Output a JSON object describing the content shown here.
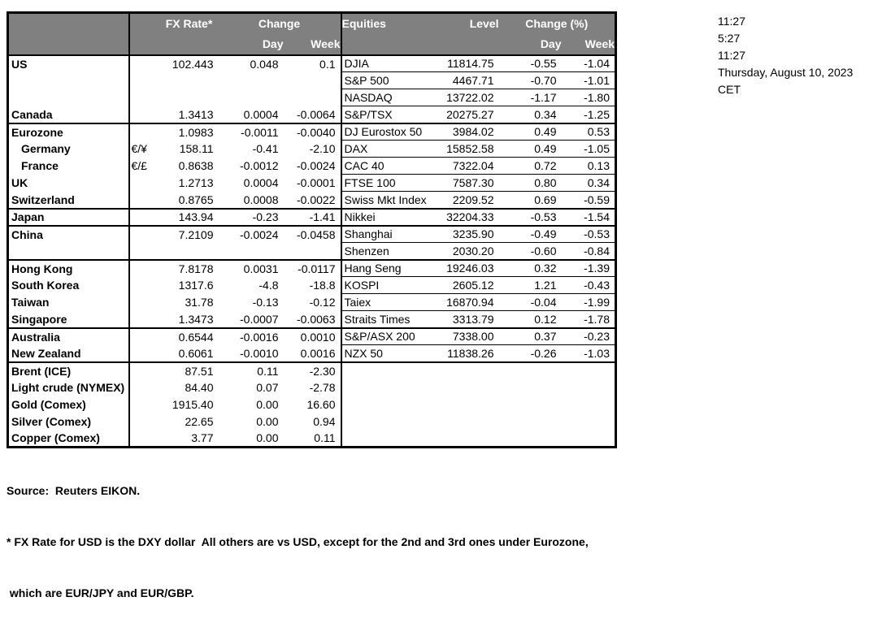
{
  "colors": {
    "header_bg": "#808080",
    "header_text": "#ffffff",
    "border": "#000000",
    "text": "#000000",
    "background": "#ffffff"
  },
  "table": {
    "header": {
      "fx_rate": "FX Rate*",
      "change": "Change",
      "day": "Day",
      "week": "Week",
      "equities": "Equities",
      "level": "Level",
      "change_pct": "Change (%)",
      "day2": "Day",
      "week2": "Week"
    },
    "rows": [
      {
        "region": "US",
        "pair": "",
        "fx_rate": "102.443",
        "fx_day": "0.048",
        "fx_week": "0.1",
        "equity": "DJIA",
        "level": "11814.75",
        "eq_day": "-0.55",
        "eq_week": "-1.04",
        "indent": false,
        "section_end": false,
        "eq_line": true
      },
      {
        "region": "",
        "pair": "",
        "fx_rate": "",
        "fx_day": "",
        "fx_week": "",
        "equity": "S&P 500",
        "level": "4467.71",
        "eq_day": "-0.70",
        "eq_week": "-1.01",
        "indent": false,
        "section_end": false,
        "eq_line": true
      },
      {
        "region": "",
        "pair": "",
        "fx_rate": "",
        "fx_day": "",
        "fx_week": "",
        "equity": "NASDAQ",
        "level": "13722.02",
        "eq_day": "-1.17",
        "eq_week": "-1.80",
        "indent": false,
        "section_end": false,
        "eq_line": true
      },
      {
        "region": "Canada",
        "pair": "",
        "fx_rate": "1.3413",
        "fx_day": "0.0004",
        "fx_week": "-0.0064",
        "equity": "S&P/TSX",
        "level": "20275.27",
        "eq_day": "0.34",
        "eq_week": "-1.25",
        "indent": false,
        "section_end": true,
        "eq_line": false
      },
      {
        "region": "Eurozone",
        "pair": "",
        "fx_rate": "1.0983",
        "fx_day": "-0.0011",
        "fx_week": "-0.0040",
        "equity": "DJ Eurostox 50",
        "level": "3984.02",
        "eq_day": "0.49",
        "eq_week": "0.53",
        "indent": false,
        "section_end": false,
        "eq_line": true
      },
      {
        "region": "Germany",
        "pair": "€/¥",
        "fx_rate": "158.11",
        "fx_day": "-0.41",
        "fx_week": "-2.10",
        "equity": "DAX",
        "level": "15852.58",
        "eq_day": "0.49",
        "eq_week": "-1.05",
        "indent": true,
        "section_end": false,
        "eq_line": true
      },
      {
        "region": "France",
        "pair": "€/£",
        "fx_rate": "0.8638",
        "fx_day": "-0.0012",
        "fx_week": "-0.0024",
        "equity": "CAC 40",
        "level": "7322.04",
        "eq_day": "0.72",
        "eq_week": "0.13",
        "indent": true,
        "section_end": false,
        "eq_line": true
      },
      {
        "region": "UK",
        "pair": "",
        "fx_rate": "1.2713",
        "fx_day": "0.0004",
        "fx_week": "-0.0001",
        "equity": "FTSE 100",
        "level": "7587.30",
        "eq_day": "0.80",
        "eq_week": "0.34",
        "indent": false,
        "section_end": false,
        "eq_line": true
      },
      {
        "region": "Switzerland",
        "pair": "",
        "fx_rate": "0.8765",
        "fx_day": "0.0008",
        "fx_week": "-0.0022",
        "equity": "Swiss Mkt Index",
        "level": "2209.52",
        "eq_day": "0.69",
        "eq_week": "-0.59",
        "indent": false,
        "section_end": true,
        "eq_line": false
      },
      {
        "region": "Japan",
        "pair": "",
        "fx_rate": "143.94",
        "fx_day": "-0.23",
        "fx_week": "-1.41",
        "equity": "Nikkei",
        "level": "32204.33",
        "eq_day": "-0.53",
        "eq_week": "-1.54",
        "indent": false,
        "section_end": true,
        "eq_line": false
      },
      {
        "region": "China",
        "pair": "",
        "fx_rate": "7.2109",
        "fx_day": "-0.0024",
        "fx_week": "-0.0458",
        "equity": "Shanghai",
        "level": "3235.90",
        "eq_day": "-0.49",
        "eq_week": "-0.53",
        "indent": false,
        "section_end": false,
        "eq_line": true
      },
      {
        "region": "",
        "pair": "",
        "fx_rate": "",
        "fx_day": "",
        "fx_week": "",
        "equity": "Shenzen",
        "level": "2030.20",
        "eq_day": "-0.60",
        "eq_week": "-0.84",
        "indent": false,
        "section_end": true,
        "eq_line": false
      },
      {
        "region": "Hong Kong",
        "pair": "",
        "fx_rate": "7.8178",
        "fx_day": "0.0031",
        "fx_week": "-0.0117",
        "equity": "Hang Seng",
        "level": "19246.03",
        "eq_day": "0.32",
        "eq_week": "-1.39",
        "indent": false,
        "section_end": false,
        "eq_line": true
      },
      {
        "region": "South Korea",
        "pair": "",
        "fx_rate": "1317.6",
        "fx_day": "-4.8",
        "fx_week": "-18.8",
        "equity": "KOSPI",
        "level": "2605.12",
        "eq_day": "1.21",
        "eq_week": "-0.43",
        "indent": false,
        "section_end": false,
        "eq_line": true
      },
      {
        "region": "Taiwan",
        "pair": "",
        "fx_rate": "31.78",
        "fx_day": "-0.13",
        "fx_week": "-0.12",
        "equity": "Taiex",
        "level": "16870.94",
        "eq_day": "-0.04",
        "eq_week": "-1.99",
        "indent": false,
        "section_end": false,
        "eq_line": true
      },
      {
        "region": "Singapore",
        "pair": "",
        "fx_rate": "1.3473",
        "fx_day": "-0.0007",
        "fx_week": "-0.0063",
        "equity": "Straits Times",
        "level": "3313.79",
        "eq_day": "0.12",
        "eq_week": "-1.78",
        "indent": false,
        "section_end": true,
        "eq_line": false
      },
      {
        "region": "Australia",
        "pair": "",
        "fx_rate": "0.6544",
        "fx_day": "-0.0016",
        "fx_week": "0.0010",
        "equity": "S&P/ASX  200",
        "level": "7338.00",
        "eq_day": "0.37",
        "eq_week": "-0.23",
        "indent": false,
        "section_end": false,
        "eq_line": true
      },
      {
        "region": "New Zealand",
        "pair": "",
        "fx_rate": "0.6061",
        "fx_day": "-0.0010",
        "fx_week": "0.0016",
        "equity": "NZX 50",
        "level": "11838.26",
        "eq_day": "-0.26",
        "eq_week": "-1.03",
        "indent": false,
        "section_end": true,
        "eq_line": false
      },
      {
        "region": "Brent (ICE)",
        "pair": "",
        "fx_rate": "87.51",
        "fx_day": "0.11",
        "fx_week": "-2.30",
        "equity": "",
        "level": "",
        "eq_day": "",
        "eq_week": "",
        "indent": false,
        "section_end": false,
        "eq_line": false
      },
      {
        "region": "Light crude (NYMEX)",
        "pair": "",
        "fx_rate": "84.40",
        "fx_day": "0.07",
        "fx_week": "-2.78",
        "equity": "",
        "level": "",
        "eq_day": "",
        "eq_week": "",
        "indent": false,
        "section_end": false,
        "eq_line": false
      },
      {
        "region": "Gold (Comex)",
        "pair": "",
        "fx_rate": "1915.40",
        "fx_day": "0.00",
        "fx_week": "16.60",
        "equity": "",
        "level": "",
        "eq_day": "",
        "eq_week": "",
        "indent": false,
        "section_end": false,
        "eq_line": false
      },
      {
        "region": "Silver (Comex)",
        "pair": "",
        "fx_rate": "22.65",
        "fx_day": "0.00",
        "fx_week": "0.94",
        "equity": "",
        "level": "",
        "eq_day": "",
        "eq_week": "",
        "indent": false,
        "section_end": false,
        "eq_line": false
      },
      {
        "region": "Copper (Comex)",
        "pair": "",
        "fx_rate": "3.77",
        "fx_day": "0.00",
        "fx_week": "0.11",
        "equity": "",
        "level": "",
        "eq_day": "",
        "eq_week": "",
        "indent": false,
        "section_end": false,
        "eq_line": false
      }
    ]
  },
  "timestamps": {
    "lines": [
      "11:27",
      "5:27",
      "11:27",
      "Thursday, August 10, 2023",
      "CET"
    ]
  },
  "footnotes": {
    "source": "Source:  Reuters EIKON.",
    "note1": "* FX Rate for USD is the DXY dollar  All others are vs USD, except for the 2nd and 3rd ones under Eurozone,",
    "note2": " which are EUR/JPY and EUR/GBP."
  }
}
